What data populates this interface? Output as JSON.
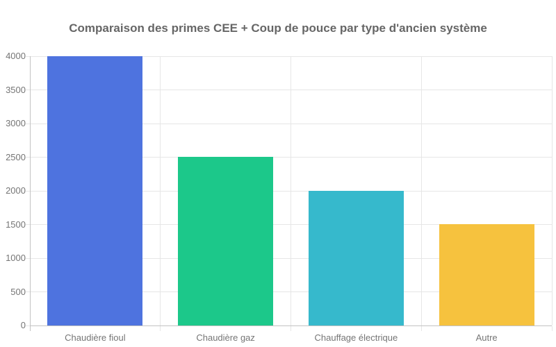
{
  "chart_data": {
    "type": "bar",
    "title": "Comparaison des primes CEE + Coup de pouce par type d'ancien système",
    "categories": [
      "Chaudière fioul",
      "Chaudière gaz",
      "Chauffage électrique",
      "Autre"
    ],
    "values": [
      4000,
      2500,
      2000,
      1500
    ],
    "bar_colors": [
      "#4e73df",
      "#1cc88a",
      "#36b9cc",
      "#f6c23e"
    ],
    "xlabel": "",
    "ylabel": "",
    "ylim": [
      0,
      4000
    ],
    "yticks": [
      0,
      500,
      1000,
      1500,
      2000,
      2500,
      3000,
      3500,
      4000
    ],
    "grid": true,
    "legend_position": "none"
  },
  "style_colors": {
    "title_text": "#666666",
    "tick_text": "#757575",
    "gridline": "#e6e6e6",
    "axis_line": "#c2c2c2",
    "background": "#ffffff"
  }
}
